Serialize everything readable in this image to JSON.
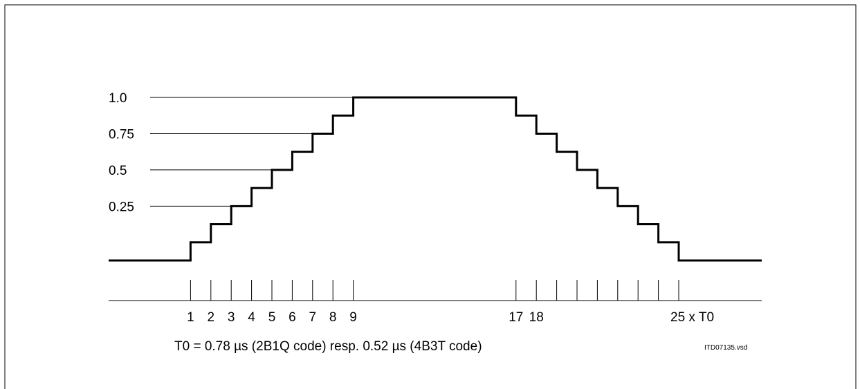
{
  "chart_data": {
    "type": "line",
    "y_tick_labels": [
      "1.0",
      "0.75",
      "0.5",
      "0.25"
    ],
    "x_tick_labels": [
      "1",
      "2",
      "3",
      "4",
      "5",
      "6",
      "7",
      "8",
      "9",
      "17",
      "18",
      "25 x T0"
    ],
    "x_ticks_unlabeled": [
      19,
      20,
      21,
      22,
      23,
      24
    ],
    "series": [
      {
        "x": [
          0,
          1,
          1,
          2,
          2,
          3,
          3,
          4,
          4,
          5,
          5,
          6,
          6,
          7,
          7,
          8,
          8,
          9,
          9,
          17,
          17,
          18,
          18,
          19,
          19,
          20,
          20,
          21,
          21,
          22,
          22,
          23,
          23,
          24,
          24,
          25,
          25,
          28
        ],
        "y": [
          0,
          0,
          0.125,
          0.125,
          0.25,
          0.25,
          0.375,
          0.375,
          0.5,
          0.5,
          0.625,
          0.625,
          0.75,
          0.75,
          0.875,
          0.875,
          1.0,
          1.0,
          1.125,
          1.125,
          1.0,
          1.0,
          0.875,
          0.875,
          0.75,
          0.75,
          0.625,
          0.625,
          0.5,
          0.5,
          0.375,
          0.375,
          0.25,
          0.25,
          0.125,
          0.125,
          0,
          0
        ]
      }
    ],
    "reference_lines": [
      {
        "label": "1.0",
        "y": 1.125
      },
      {
        "label": "0.75",
        "y": 0.875
      },
      {
        "label": "0.5",
        "y": 0.625
      },
      {
        "label": "0.25",
        "y": 0.375
      }
    ],
    "xlim": [
      -3,
      28
    ],
    "ylim": [
      0,
      1.125
    ]
  },
  "caption": "T0 = 0.78 µs (2B1Q code) resp. 0.52 µs (4B3T code)",
  "file_id": "ITD07135.vsd"
}
